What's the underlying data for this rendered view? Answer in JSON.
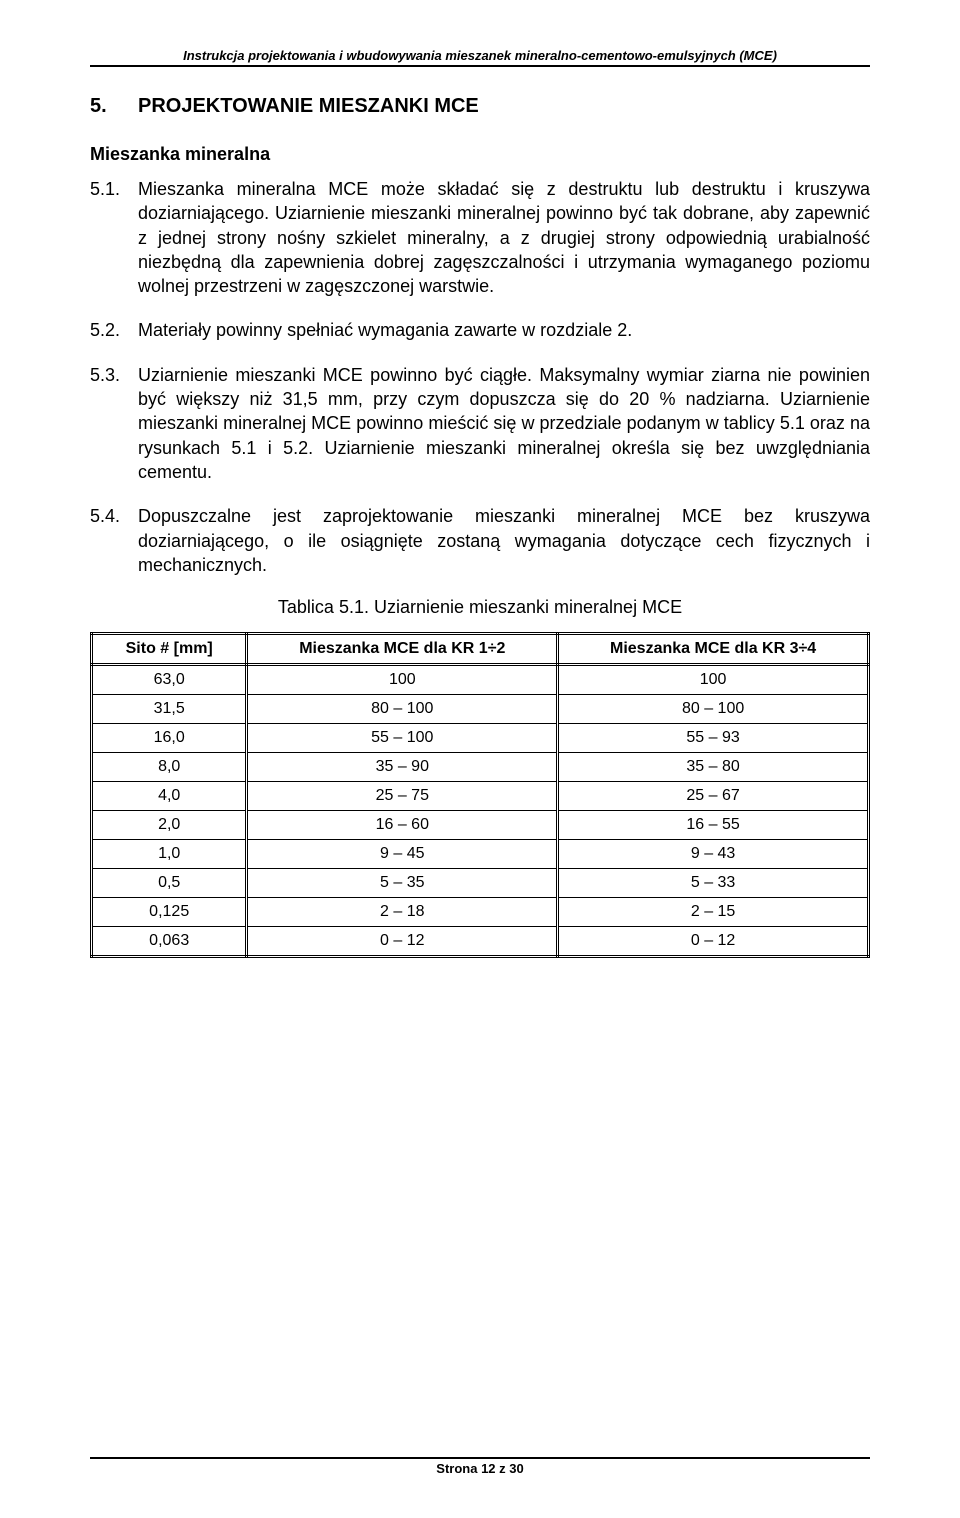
{
  "header": {
    "title": "Instrukcja projektowania i wbudowywania mieszanek mineralno-cementowo-emulsyjnych (MCE)"
  },
  "section": {
    "number": "5.",
    "title": "PROJEKTOWANIE MIESZANKI MCE"
  },
  "subsection": {
    "title": "Mieszanka mineralna"
  },
  "paragraphs": {
    "p1": {
      "num": "5.1.",
      "text": "Mieszanka mineralna MCE może składać się z destruktu lub destruktu i kruszywa doziarniającego. Uziarnienie mieszanki mineralnej powinno być tak dobrane, aby zapewnić z jednej strony nośny szkielet mineralny, a z drugiej strony odpowiednią urabialność niezbędną dla zapewnienia dobrej zagęszczalności i utrzymania wymaganego poziomu wolnej przestrzeni w zagęszczonej warstwie."
    },
    "p2": {
      "num": "5.2.",
      "text": "Materiały powinny spełniać wymagania zawarte w rozdziale 2."
    },
    "p3": {
      "num": "5.3.",
      "text": "Uziarnienie mieszanki MCE powinno być ciągłe. Maksymalny wymiar ziarna nie powinien być większy niż 31,5 mm, przy czym dopuszcza się do 20 % nadziarna. Uziarnienie mieszanki mineralnej MCE powinno mieścić się w przedziale podanym w tablicy 5.1 oraz na rysunkach 5.1 i 5.2. Uziarnienie mieszanki mineralnej określa się bez uwzględniania cementu."
    },
    "p4": {
      "num": "5.4.",
      "text": "Dopuszczalne jest zaprojektowanie mieszanki mineralnej MCE bez kruszywa doziarniającego, o ile osiągnięte zostaną wymagania dotyczące cech fizycznych i mechanicznych."
    }
  },
  "table": {
    "caption": "Tablica 5.1. Uziarnienie mieszanki mineralnej MCE",
    "columns": [
      "Sito # [mm]",
      "Mieszanka MCE dla KR 1÷2",
      "Mieszanka MCE dla KR 3÷4"
    ],
    "rows": [
      [
        "63,0",
        "100",
        "100"
      ],
      [
        "31,5",
        "80 – 100",
        "80 – 100"
      ],
      [
        "16,0",
        "55 – 100",
        "55 – 93"
      ],
      [
        "8,0",
        "35 – 90",
        "35 – 80"
      ],
      [
        "4,0",
        "25 – 75",
        "25 – 67"
      ],
      [
        "2,0",
        "16 – 60",
        "16 – 55"
      ],
      [
        "1,0",
        "9 – 45",
        "9 – 43"
      ],
      [
        "0,5",
        "5 – 35",
        "5 – 33"
      ],
      [
        "0,125",
        "2 – 18",
        "2 – 15"
      ],
      [
        "0,063",
        "0 – 12",
        "0 – 12"
      ]
    ],
    "style": {
      "type": "table",
      "border_color": "#000000",
      "header_border": "double",
      "cell_border": "single",
      "text_align": "center",
      "font_size": 16,
      "column_widths_pct": [
        20,
        40,
        40
      ]
    }
  },
  "footer": {
    "text": "Strona 12 z 30"
  },
  "style": {
    "background_color": "#ffffff",
    "text_color": "#000000",
    "body_font_size": 18,
    "heading_font_size": 20,
    "header_italic": true
  }
}
